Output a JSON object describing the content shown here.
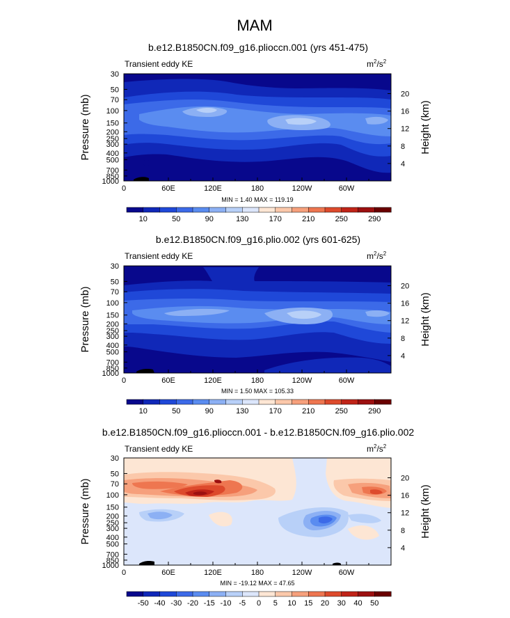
{
  "figure": {
    "season": "MAM"
  },
  "units": {
    "base": "m",
    "exp1": "2",
    "sep": "/",
    "base2": "s",
    "exp2": "2"
  },
  "chart_data": [
    {
      "type": "heatmap",
      "title": "b.e12.B1850CN.f09_g16.plioccn.001 (yrs 451-475)",
      "subtitle": "Transient eddy KE",
      "xlabel": "",
      "ylabel": "Pressure (mb)",
      "ylabel_right": "Height (km)",
      "xticks": [
        "0",
        "60E",
        "120E",
        "180",
        "120W",
        "60W"
      ],
      "xtick_values": [
        0,
        60,
        120,
        180,
        240,
        300
      ],
      "xlim": [
        0,
        360
      ],
      "yticks": [
        "30",
        "50",
        "70",
        "100",
        "150",
        "200",
        "250",
        "300",
        "400",
        "500",
        "700",
        "850",
        "1000"
      ],
      "ytick_values": [
        30,
        50,
        70,
        100,
        150,
        200,
        250,
        300,
        400,
        500,
        700,
        850,
        1000
      ],
      "ylim": [
        1000,
        30
      ],
      "height_ticks": [
        "4",
        "8",
        "12",
        "16",
        "20"
      ],
      "height_values": [
        4,
        8,
        12,
        16,
        20
      ],
      "stats": "MIN =    1.40   MAX = 119.19",
      "min": 1.4,
      "max": 119.19,
      "colorbar": {
        "labels": [
          "10",
          "50",
          "90",
          "130",
          "170",
          "210",
          "250",
          "290"
        ],
        "colors": [
          "#08088c",
          "#1028b8",
          "#1f48d8",
          "#3c6ae8",
          "#5a8cf0",
          "#8cb0f4",
          "#b8d0f8",
          "#dce6fb",
          "#fde6d4",
          "#fbc8aa",
          "#f6a07c",
          "#ee7650",
          "#dd4a2c",
          "#c02418",
          "#9c1010",
          "#6a0000"
        ]
      },
      "contour_levels": [
        10,
        30,
        50,
        70,
        90
      ],
      "field": [
        {
          "pressure": 50,
          "lons": [
            0,
            60,
            120,
            180,
            240,
            300,
            360
          ],
          "values": [
            12,
            16,
            22,
            28,
            22,
            16,
            12
          ]
        },
        {
          "pressure": 100,
          "lons": [
            0,
            60,
            120,
            180,
            240,
            300,
            360
          ],
          "values": [
            40,
            55,
            75,
            60,
            48,
            42,
            40
          ]
        },
        {
          "pressure": 200,
          "lons": [
            0,
            60,
            120,
            180,
            240,
            300,
            360
          ],
          "values": [
            55,
            60,
            68,
            66,
            80,
            50,
            55
          ]
        },
        {
          "pressure": 500,
          "lons": [
            0,
            60,
            120,
            180,
            240,
            300,
            360
          ],
          "values": [
            22,
            20,
            14,
            16,
            20,
            18,
            22
          ]
        },
        {
          "pressure": 850,
          "lons": [
            0,
            60,
            120,
            180,
            240,
            300,
            360
          ],
          "values": [
            6,
            5,
            6,
            7,
            8,
            6,
            6
          ]
        }
      ]
    },
    {
      "type": "heatmap",
      "title": "b.e12.B1850CN.f09_g16.plio.002 (yrs 601-625)",
      "subtitle": "Transient eddy KE",
      "xlabel": "",
      "ylabel": "Pressure (mb)",
      "ylabel_right": "Height (km)",
      "xticks": [
        "0",
        "60E",
        "120E",
        "180",
        "120W",
        "60W"
      ],
      "xtick_values": [
        0,
        60,
        120,
        180,
        240,
        300
      ],
      "xlim": [
        0,
        360
      ],
      "yticks": [
        "30",
        "50",
        "70",
        "100",
        "150",
        "200",
        "250",
        "300",
        "400",
        "500",
        "700",
        "850",
        "1000"
      ],
      "ytick_values": [
        30,
        50,
        70,
        100,
        150,
        200,
        250,
        300,
        400,
        500,
        700,
        850,
        1000
      ],
      "ylim": [
        1000,
        30
      ],
      "height_ticks": [
        "4",
        "8",
        "12",
        "16",
        "20"
      ],
      "height_values": [
        4,
        8,
        12,
        16,
        20
      ],
      "stats": "MIN =    1.50   MAX = 105.33",
      "min": 1.5,
      "max": 105.33,
      "colorbar": {
        "labels": [
          "10",
          "50",
          "90",
          "130",
          "170",
          "210",
          "250",
          "290"
        ],
        "colors": [
          "#08088c",
          "#1028b8",
          "#1f48d8",
          "#3c6ae8",
          "#5a8cf0",
          "#8cb0f4",
          "#b8d0f8",
          "#dce6fb",
          "#fde6d4",
          "#fbc8aa",
          "#f6a07c",
          "#ee7650",
          "#dd4a2c",
          "#c02418",
          "#9c1010",
          "#6a0000"
        ]
      },
      "contour_levels": [
        10,
        30,
        50,
        70,
        90
      ],
      "field": [
        {
          "pressure": 50,
          "lons": [
            0,
            60,
            120,
            180,
            240,
            300,
            360
          ],
          "values": [
            10,
            12,
            16,
            20,
            16,
            12,
            10
          ]
        },
        {
          "pressure": 100,
          "lons": [
            0,
            60,
            120,
            180,
            240,
            300,
            360
          ],
          "values": [
            30,
            38,
            45,
            42,
            40,
            35,
            30
          ]
        },
        {
          "pressure": 200,
          "lons": [
            0,
            60,
            120,
            180,
            240,
            300,
            360
          ],
          "values": [
            52,
            58,
            62,
            64,
            78,
            48,
            52
          ]
        },
        {
          "pressure": 500,
          "lons": [
            0,
            60,
            120,
            180,
            240,
            300,
            360
          ],
          "values": [
            20,
            18,
            14,
            16,
            20,
            18,
            20
          ]
        },
        {
          "pressure": 850,
          "lons": [
            0,
            60,
            120,
            180,
            240,
            300,
            360
          ],
          "values": [
            6,
            5,
            6,
            7,
            8,
            6,
            6
          ]
        }
      ]
    },
    {
      "type": "heatmap",
      "title": "b.e12.B1850CN.f09_g16.plioccn.001 - b.e12.B1850CN.f09_g16.plio.002",
      "subtitle": "Transient eddy KE",
      "xlabel": "",
      "ylabel": "Pressure (mb)",
      "ylabel_right": "Height (km)",
      "xticks": [
        "0",
        "60E",
        "120E",
        "180",
        "120W",
        "60W"
      ],
      "xtick_values": [
        0,
        60,
        120,
        180,
        240,
        300
      ],
      "xlim": [
        0,
        360
      ],
      "yticks": [
        "30",
        "50",
        "70",
        "100",
        "150",
        "200",
        "250",
        "300",
        "400",
        "500",
        "700",
        "850",
        "1000"
      ],
      "ytick_values": [
        30,
        50,
        70,
        100,
        150,
        200,
        250,
        300,
        400,
        500,
        700,
        850,
        1000
      ],
      "ylim": [
        1000,
        30
      ],
      "height_ticks": [
        "4",
        "8",
        "12",
        "16",
        "20"
      ],
      "height_values": [
        4,
        8,
        12,
        16,
        20
      ],
      "stats": "MIN = -19.12   MAX =  47.65",
      "min": -19.12,
      "max": 47.65,
      "colorbar": {
        "labels": [
          "-50",
          "-40",
          "-30",
          "-20",
          "-15",
          "-10",
          "-5",
          "0",
          "5",
          "10",
          "15",
          "20",
          "30",
          "40",
          "50"
        ],
        "colors": [
          "#08088c",
          "#1028b8",
          "#1f48d8",
          "#3c6ae8",
          "#5a8cf0",
          "#8cb0f4",
          "#b8d0f8",
          "#dce6fb",
          "#fde6d4",
          "#fbc8aa",
          "#f6a07c",
          "#ee7650",
          "#dd4a2c",
          "#c02418",
          "#9c1010",
          "#6a0000"
        ]
      },
      "contour_levels": [
        -10,
        -5,
        5,
        10,
        20,
        30,
        40
      ],
      "field": [
        {
          "pressure": 50,
          "lons": [
            0,
            60,
            120,
            180,
            240,
            300,
            360
          ],
          "values": [
            3,
            4,
            8,
            6,
            2,
            3,
            3
          ]
        },
        {
          "pressure": 100,
          "lons": [
            0,
            60,
            120,
            180,
            240,
            300,
            360
          ],
          "values": [
            10,
            20,
            45,
            20,
            6,
            12,
            10
          ]
        },
        {
          "pressure": 200,
          "lons": [
            0,
            60,
            120,
            180,
            240,
            300,
            360
          ],
          "values": [
            -2,
            -6,
            -3,
            -2,
            -15,
            -4,
            -2
          ]
        },
        {
          "pressure": 500,
          "lons": [
            0,
            60,
            120,
            180,
            240,
            300,
            360
          ],
          "values": [
            -2,
            -2,
            -3,
            -2,
            -3,
            -2,
            -2
          ]
        },
        {
          "pressure": 850,
          "lons": [
            0,
            60,
            120,
            180,
            240,
            300,
            360
          ],
          "values": [
            -1,
            0,
            -1,
            0,
            -1,
            0,
            -1
          ]
        }
      ]
    }
  ]
}
